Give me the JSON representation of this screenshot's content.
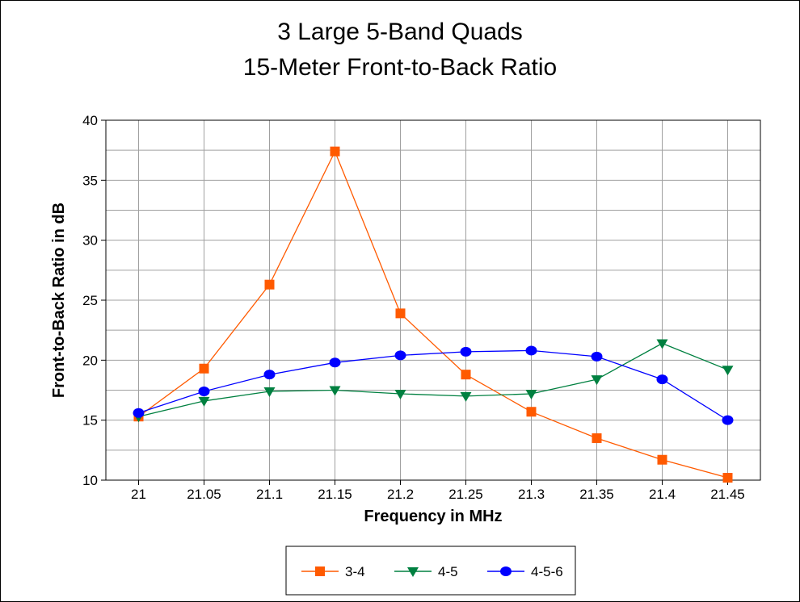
{
  "chart_data": {
    "type": "line",
    "title": [
      "3 Large 5-Band Quads",
      "15-Meter Front-to-Back Ratio"
    ],
    "xlabel": "Frequency in MHz",
    "ylabel": "Front-to-Back Ratio in dB",
    "x": [
      21,
      21.05,
      21.1,
      21.15,
      21.2,
      21.25,
      21.3,
      21.35,
      21.4,
      21.45
    ],
    "x_tick_labels": [
      "21",
      "21.05",
      "21.1",
      "21.15",
      "21.2",
      "21.25",
      "21.3",
      "21.35",
      "21.4",
      "21.45"
    ],
    "ylim": [
      10,
      40
    ],
    "y_ticks": [
      10,
      15,
      20,
      25,
      30,
      35,
      40
    ],
    "y_minor_step": 2.5,
    "grid": true,
    "legend_position": "bottom-center",
    "series": [
      {
        "name": "3-4",
        "color": "#ff5a00",
        "marker": "square",
        "values": [
          15.3,
          19.3,
          26.3,
          37.4,
          23.9,
          18.8,
          15.7,
          13.5,
          11.7,
          10.2
        ]
      },
      {
        "name": "4-5",
        "color": "#008040",
        "marker": "triangle-down",
        "values": [
          15.3,
          16.6,
          17.4,
          17.5,
          17.2,
          17.0,
          17.2,
          18.4,
          21.4,
          19.2
        ]
      },
      {
        "name": "4-5-6",
        "color": "#0000ff",
        "marker": "circle",
        "values": [
          15.6,
          17.4,
          18.8,
          19.8,
          20.4,
          20.7,
          20.8,
          20.3,
          18.4,
          15.0
        ]
      }
    ]
  }
}
